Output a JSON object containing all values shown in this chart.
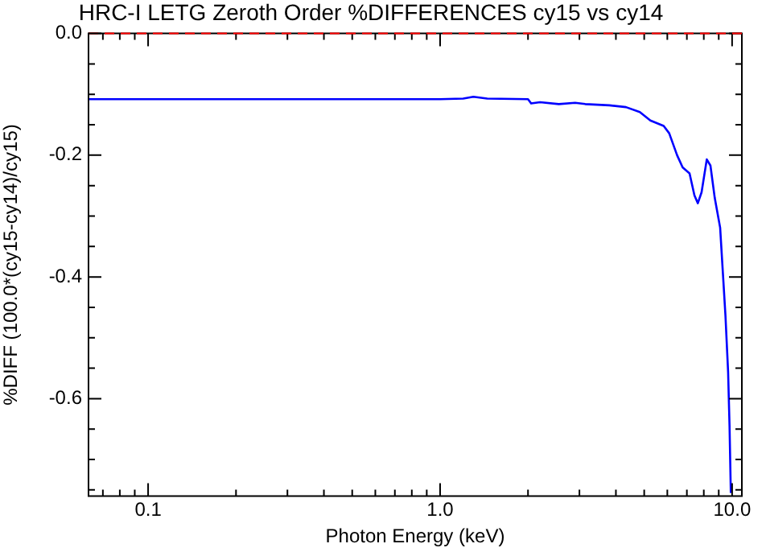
{
  "chart_data": {
    "type": "line",
    "title": "HRC-I LETG Zeroth Order %DIFFERENCES cy15 vs cy14",
    "xlabel": "Photon Energy (keV)",
    "ylabel": "%DIFF (100.0*(cy15-cy14)/cy15)",
    "log": "x",
    "grid": false,
    "legend": false,
    "marker": "none",
    "line_style": "solid",
    "xlim": [
      0.0625,
      10.8
    ],
    "ylim": [
      -0.76,
      0
    ],
    "xticks": [
      {
        "value": 0.07,
        "label": null
      },
      {
        "value": 0.08,
        "label": null
      },
      {
        "value": 0.09,
        "label": null
      },
      {
        "value": 0.1,
        "label": "0.1"
      },
      {
        "value": 0.2,
        "label": null
      },
      {
        "value": 0.3,
        "label": null
      },
      {
        "value": 0.4,
        "label": null
      },
      {
        "value": 0.5,
        "label": null
      },
      {
        "value": 0.6,
        "label": null
      },
      {
        "value": 0.7,
        "label": null
      },
      {
        "value": 0.8,
        "label": null
      },
      {
        "value": 0.9,
        "label": null
      },
      {
        "value": 1,
        "label": "1.0"
      },
      {
        "value": 2,
        "label": null
      },
      {
        "value": 3,
        "label": null
      },
      {
        "value": 4,
        "label": null
      },
      {
        "value": 5,
        "label": null
      },
      {
        "value": 6,
        "label": null
      },
      {
        "value": 7,
        "label": null
      },
      {
        "value": 8,
        "label": null
      },
      {
        "value": 9,
        "label": null
      },
      {
        "value": 10,
        "label": "10.0"
      }
    ],
    "yticks": [
      {
        "value": -0.75,
        "label": null
      },
      {
        "value": -0.7,
        "label": null
      },
      {
        "value": -0.65,
        "label": null
      },
      {
        "value": -0.6,
        "label": "-0.6"
      },
      {
        "value": -0.55,
        "label": null
      },
      {
        "value": -0.5,
        "label": null
      },
      {
        "value": -0.45,
        "label": null
      },
      {
        "value": -0.4,
        "label": "-0.4"
      },
      {
        "value": -0.35,
        "label": null
      },
      {
        "value": -0.3,
        "label": null
      },
      {
        "value": -0.25,
        "label": null
      },
      {
        "value": -0.2,
        "label": "-0.2"
      },
      {
        "value": -0.15,
        "label": null
      },
      {
        "value": -0.1,
        "label": null
      },
      {
        "value": -0.05,
        "label": null
      },
      {
        "value": 0,
        "label": "0.0"
      }
    ],
    "ref_lines": [
      {
        "axis": "y",
        "value": 0,
        "color": "#ff0000",
        "line_style": "dashed"
      }
    ],
    "series": [
      {
        "color": "#0000ff",
        "x": [
          0.0625,
          0.5,
          1.0,
          1.2,
          1.3,
          1.45,
          2.0,
          2.05,
          2.2,
          2.55,
          2.9,
          3.14,
          3.8,
          4.33,
          4.83,
          5.25,
          5.83,
          6.09,
          6.48,
          6.77,
          7.15,
          7.43,
          7.63,
          7.86,
          8.19,
          8.43,
          8.72,
          9.1,
          9.3,
          9.49,
          9.69,
          9.8,
          9.9
        ],
        "values": [
          -0.108,
          -0.108,
          -0.108,
          -0.107,
          -0.104,
          -0.107,
          -0.108,
          -0.115,
          -0.113,
          -0.116,
          -0.114,
          -0.116,
          -0.118,
          -0.121,
          -0.129,
          -0.143,
          -0.152,
          -0.164,
          -0.2,
          -0.22,
          -0.23,
          -0.266,
          -0.279,
          -0.261,
          -0.207,
          -0.217,
          -0.27,
          -0.319,
          -0.394,
          -0.464,
          -0.556,
          -0.645,
          -0.755
        ]
      }
    ]
  }
}
